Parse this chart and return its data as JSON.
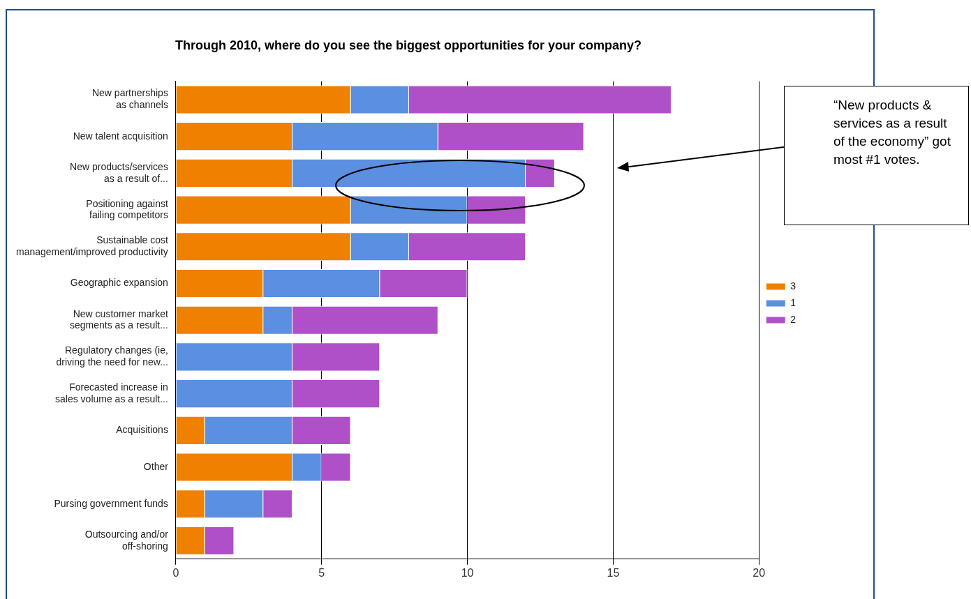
{
  "chart_data": {
    "type": "bar",
    "orientation": "horizontal",
    "stacked": true,
    "title": "Through 2010, where do you see the biggest opportunities for your company?",
    "categories": [
      "New partnerships\nas channels",
      "New talent acquisition",
      "New products/services\nas a result of...",
      "Positioning against\nfailing competitors",
      "Sustainable cost\nmanagement/improved productivity",
      "Geographic expansion",
      "New customer market\nsegments as a result...",
      "Regulatory changes (ie,\ndriving the need for new...",
      "Forecasted increase in\nsales volume as a result...",
      "Acquisitions",
      "Other",
      "Pursing government funds",
      "Outsourcing and/or\noff-shoring"
    ],
    "series": [
      {
        "name": "3",
        "color": "#f08000",
        "values": [
          6,
          4,
          4,
          6,
          6,
          3,
          3,
          0,
          0,
          1,
          4,
          1,
          1
        ]
      },
      {
        "name": "1",
        "color": "#5b8fdf",
        "values": [
          2,
          5,
          8,
          4,
          2,
          4,
          1,
          4,
          4,
          3,
          1,
          2,
          0
        ]
      },
      {
        "name": "2",
        "color": "#b050c8",
        "values": [
          9,
          5,
          1,
          2,
          4,
          3,
          5,
          3,
          3,
          2,
          1,
          1,
          1
        ]
      }
    ],
    "xlim": [
      0,
      20
    ],
    "xticks": [
      0,
      5,
      10,
      15,
      20
    ],
    "grid": "x",
    "legend": "right",
    "annotations": [
      "“New products & services as a result of the economy” got most #1 votes."
    ]
  }
}
